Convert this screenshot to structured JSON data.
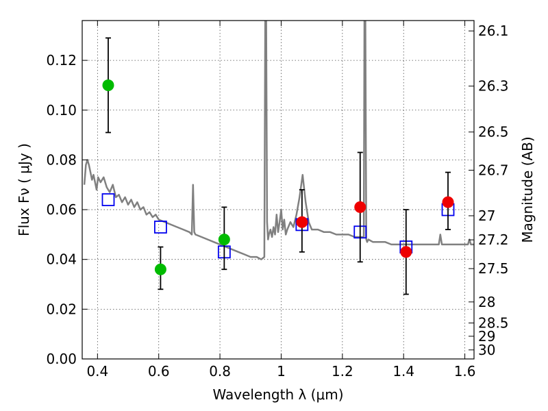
{
  "chart_data": {
    "type": "scatter",
    "xlabel": "Wavelength  λ (μm)",
    "ylabel": "Flux  Fν  ( μJy )",
    "y2label": "Magnitude (AB)",
    "xlim": [
      0.35,
      1.63
    ],
    "ylim": [
      0.0,
      0.136
    ],
    "grid": true,
    "x_ticks": [
      0.4,
      0.6,
      0.8,
      1.0,
      1.2,
      1.4,
      1.6
    ],
    "x_tick_labels": [
      "0.4",
      "0.6",
      "0.8",
      "1",
      "1.2",
      "1.4",
      "1.6"
    ],
    "y_ticks": [
      0.0,
      0.02,
      0.04,
      0.06,
      0.08,
      0.1,
      0.12
    ],
    "y_tick_labels": [
      "0.00",
      "0.02",
      "0.04",
      "0.06",
      "0.08",
      "0.10",
      "0.12"
    ],
    "mag_ticks": [
      "26.1",
      "26.3",
      "26.5",
      "26.7",
      "27",
      "27.2",
      "27.5",
      "28",
      "28.5",
      "29",
      "30"
    ],
    "model_spectrum": {
      "color": "#808080",
      "x": [
        0.357,
        0.362,
        0.367,
        0.372,
        0.377,
        0.382,
        0.387,
        0.392,
        0.397,
        0.402,
        0.41,
        0.42,
        0.43,
        0.44,
        0.45,
        0.46,
        0.47,
        0.48,
        0.49,
        0.5,
        0.51,
        0.52,
        0.53,
        0.54,
        0.55,
        0.56,
        0.57,
        0.58,
        0.59,
        0.6,
        0.62,
        0.64,
        0.66,
        0.68,
        0.7,
        0.708,
        0.712,
        0.716,
        0.72,
        0.74,
        0.76,
        0.78,
        0.8,
        0.82,
        0.84,
        0.86,
        0.88,
        0.9,
        0.92,
        0.935,
        0.945,
        0.948,
        0.951,
        0.954,
        0.957,
        0.96,
        0.965,
        0.97,
        0.975,
        0.98,
        0.985,
        0.99,
        0.995,
        1.0,
        1.005,
        1.01,
        1.015,
        1.02,
        1.03,
        1.04,
        1.05,
        1.06,
        1.07,
        1.08,
        1.09,
        1.1,
        1.12,
        1.14,
        1.16,
        1.18,
        1.2,
        1.22,
        1.24,
        1.26,
        1.27,
        1.272,
        1.275,
        1.278,
        1.281,
        1.285,
        1.3,
        1.32,
        1.34,
        1.36,
        1.38,
        1.4,
        1.42,
        1.44,
        1.46,
        1.48,
        1.5,
        1.515,
        1.52,
        1.525,
        1.54,
        1.56,
        1.58,
        1.6,
        1.61,
        1.615,
        1.62,
        1.63
      ],
      "y": [
        0.07,
        0.078,
        0.08,
        0.078,
        0.075,
        0.072,
        0.074,
        0.071,
        0.068,
        0.073,
        0.071,
        0.073,
        0.069,
        0.067,
        0.07,
        0.065,
        0.066,
        0.063,
        0.065,
        0.062,
        0.064,
        0.061,
        0.063,
        0.06,
        0.061,
        0.058,
        0.059,
        0.057,
        0.058,
        0.056,
        0.055,
        0.054,
        0.053,
        0.052,
        0.051,
        0.05,
        0.07,
        0.051,
        0.05,
        0.049,
        0.048,
        0.047,
        0.046,
        0.045,
        0.044,
        0.043,
        0.042,
        0.041,
        0.041,
        0.04,
        0.041,
        0.136,
        0.136,
        0.055,
        0.048,
        0.05,
        0.052,
        0.049,
        0.053,
        0.05,
        0.058,
        0.051,
        0.055,
        0.06,
        0.052,
        0.056,
        0.05,
        0.052,
        0.055,
        0.053,
        0.058,
        0.065,
        0.074,
        0.063,
        0.055,
        0.052,
        0.052,
        0.051,
        0.051,
        0.05,
        0.05,
        0.05,
        0.049,
        0.049,
        0.049,
        0.136,
        0.136,
        0.048,
        0.047,
        0.048,
        0.047,
        0.047,
        0.047,
        0.046,
        0.046,
        0.046,
        0.046,
        0.046,
        0.046,
        0.046,
        0.046,
        0.046,
        0.05,
        0.046,
        0.046,
        0.046,
        0.046,
        0.046,
        0.046,
        0.048,
        0.046,
        0.046
      ]
    },
    "series": [
      {
        "marker": "circle",
        "color": "#00bb00",
        "points": [
          {
            "x": 0.435,
            "y": 0.11,
            "yerr_low": 0.091,
            "yerr_high": 0.129
          },
          {
            "x": 0.606,
            "y": 0.036,
            "yerr_low": 0.028,
            "yerr_high": 0.045
          },
          {
            "x": 0.814,
            "y": 0.048,
            "yerr_low": 0.036,
            "yerr_high": 0.061
          }
        ]
      },
      {
        "marker": "circle",
        "color": "#ee0000",
        "points": [
          {
            "x": 1.068,
            "y": 0.055,
            "yerr_low": 0.043,
            "yerr_high": 0.068
          },
          {
            "x": 1.258,
            "y": 0.061,
            "yerr_low": 0.039,
            "yerr_high": 0.083
          },
          {
            "x": 1.408,
            "y": 0.043,
            "yerr_low": 0.026,
            "yerr_high": 0.06
          },
          {
            "x": 1.545,
            "y": 0.063,
            "yerr_low": 0.052,
            "yerr_high": 0.075
          }
        ]
      },
      {
        "marker": "open-square",
        "color": "#0000ee",
        "points": [
          {
            "x": 0.435,
            "y": 0.064
          },
          {
            "x": 0.606,
            "y": 0.053
          },
          {
            "x": 0.814,
            "y": 0.043
          },
          {
            "x": 1.068,
            "y": 0.054
          },
          {
            "x": 1.258,
            "y": 0.051
          },
          {
            "x": 1.408,
            "y": 0.045
          },
          {
            "x": 1.545,
            "y": 0.06
          }
        ]
      }
    ]
  }
}
